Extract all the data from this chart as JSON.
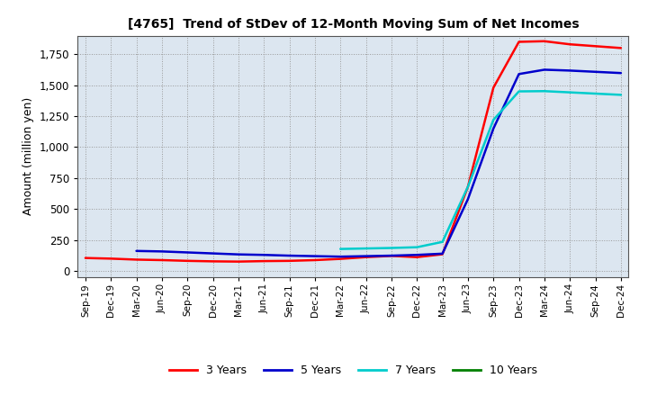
{
  "title": "[4765]  Trend of StDev of 12-Month Moving Sum of Net Incomes",
  "ylabel": "Amount (million yen)",
  "background_color": "#ffffff",
  "plot_bg_color": "#dce6f0",
  "grid_color": "#999999",
  "ylim": [
    -50,
    1900
  ],
  "yticks": [
    0,
    250,
    500,
    750,
    1000,
    1250,
    1500,
    1750
  ],
  "x_labels": [
    "Sep-19",
    "Dec-19",
    "Mar-20",
    "Jun-20",
    "Sep-20",
    "Dec-20",
    "Mar-21",
    "Jun-21",
    "Sep-21",
    "Dec-21",
    "Mar-22",
    "Jun-22",
    "Sep-22",
    "Dec-22",
    "Mar-23",
    "Jun-23",
    "Sep-23",
    "Dec-23",
    "Mar-24",
    "Jun-24",
    "Sep-24",
    "Dec-24"
  ],
  "series": {
    "3 Years": {
      "color": "#ff0000",
      "values": [
        105,
        100,
        92,
        88,
        82,
        78,
        76,
        80,
        82,
        88,
        98,
        112,
        122,
        112,
        135,
        680,
        1480,
        1850,
        1855,
        1830,
        1815,
        1800
      ]
    },
    "5 Years": {
      "color": "#0000cc",
      "values": [
        null,
        null,
        162,
        158,
        150,
        142,
        134,
        130,
        124,
        120,
        116,
        120,
        124,
        130,
        140,
        580,
        1150,
        1590,
        1625,
        1618,
        1608,
        1598
      ]
    },
    "7 Years": {
      "color": "#00cccc",
      "values": [
        null,
        null,
        null,
        null,
        null,
        null,
        null,
        null,
        null,
        null,
        178,
        182,
        186,
        192,
        235,
        680,
        1220,
        1450,
        1452,
        1442,
        1432,
        1422
      ]
    },
    "10 Years": {
      "color": "#008000",
      "values": [
        null,
        null,
        null,
        null,
        null,
        null,
        null,
        null,
        null,
        null,
        null,
        null,
        null,
        null,
        null,
        null,
        null,
        null,
        null,
        null,
        null,
        null
      ]
    }
  },
  "legend_labels": [
    "3 Years",
    "5 Years",
    "7 Years",
    "10 Years"
  ],
  "legend_colors": [
    "#ff0000",
    "#0000cc",
    "#00cccc",
    "#008000"
  ]
}
